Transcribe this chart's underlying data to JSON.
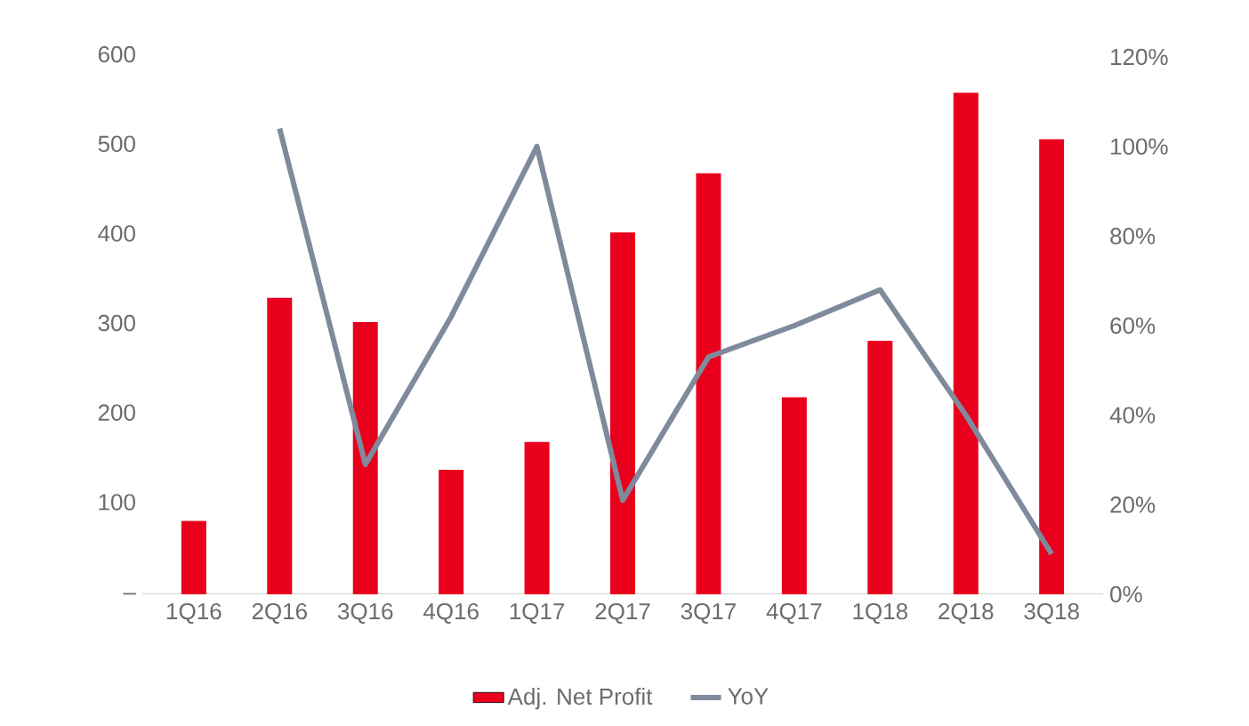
{
  "chart_data": {
    "type": "bar",
    "categories": [
      "1Q16",
      "2Q16",
      "3Q16",
      "4Q16",
      "1Q17",
      "2Q17",
      "3Q17",
      "4Q17",
      "1Q18",
      "2Q18",
      "3Q18"
    ],
    "series": [
      {
        "name": "Adj. Net Profit",
        "color": "#e8001c",
        "values": [
          82,
          331,
          304,
          139,
          170,
          404,
          470,
          220,
          283,
          560,
          508
        ]
      },
      {
        "name": "YoY",
        "type": "line",
        "axis": "y2",
        "color": "#7f8a9c",
        "values": [
          null,
          104,
          29,
          62,
          100,
          21,
          53,
          60,
          68,
          40,
          9
        ]
      }
    ],
    "ylim": [
      0,
      600
    ],
    "yticks": [
      {
        "value": 0,
        "label": "–"
      },
      100,
      200,
      300,
      400,
      500,
      600
    ],
    "y2lim": [
      0,
      120
    ],
    "y2ticks": [
      {
        "value": 0,
        "label": "0%"
      },
      {
        "value": 20,
        "label": "20%"
      },
      {
        "value": 40,
        "label": "40%"
      },
      {
        "value": 60,
        "label": "60%"
      },
      {
        "value": 80,
        "label": "80%"
      },
      {
        "value": 100,
        "label": "100%"
      },
      {
        "value": 120,
        "label": "120%"
      }
    ],
    "legend": "bottom",
    "grid": false
  }
}
